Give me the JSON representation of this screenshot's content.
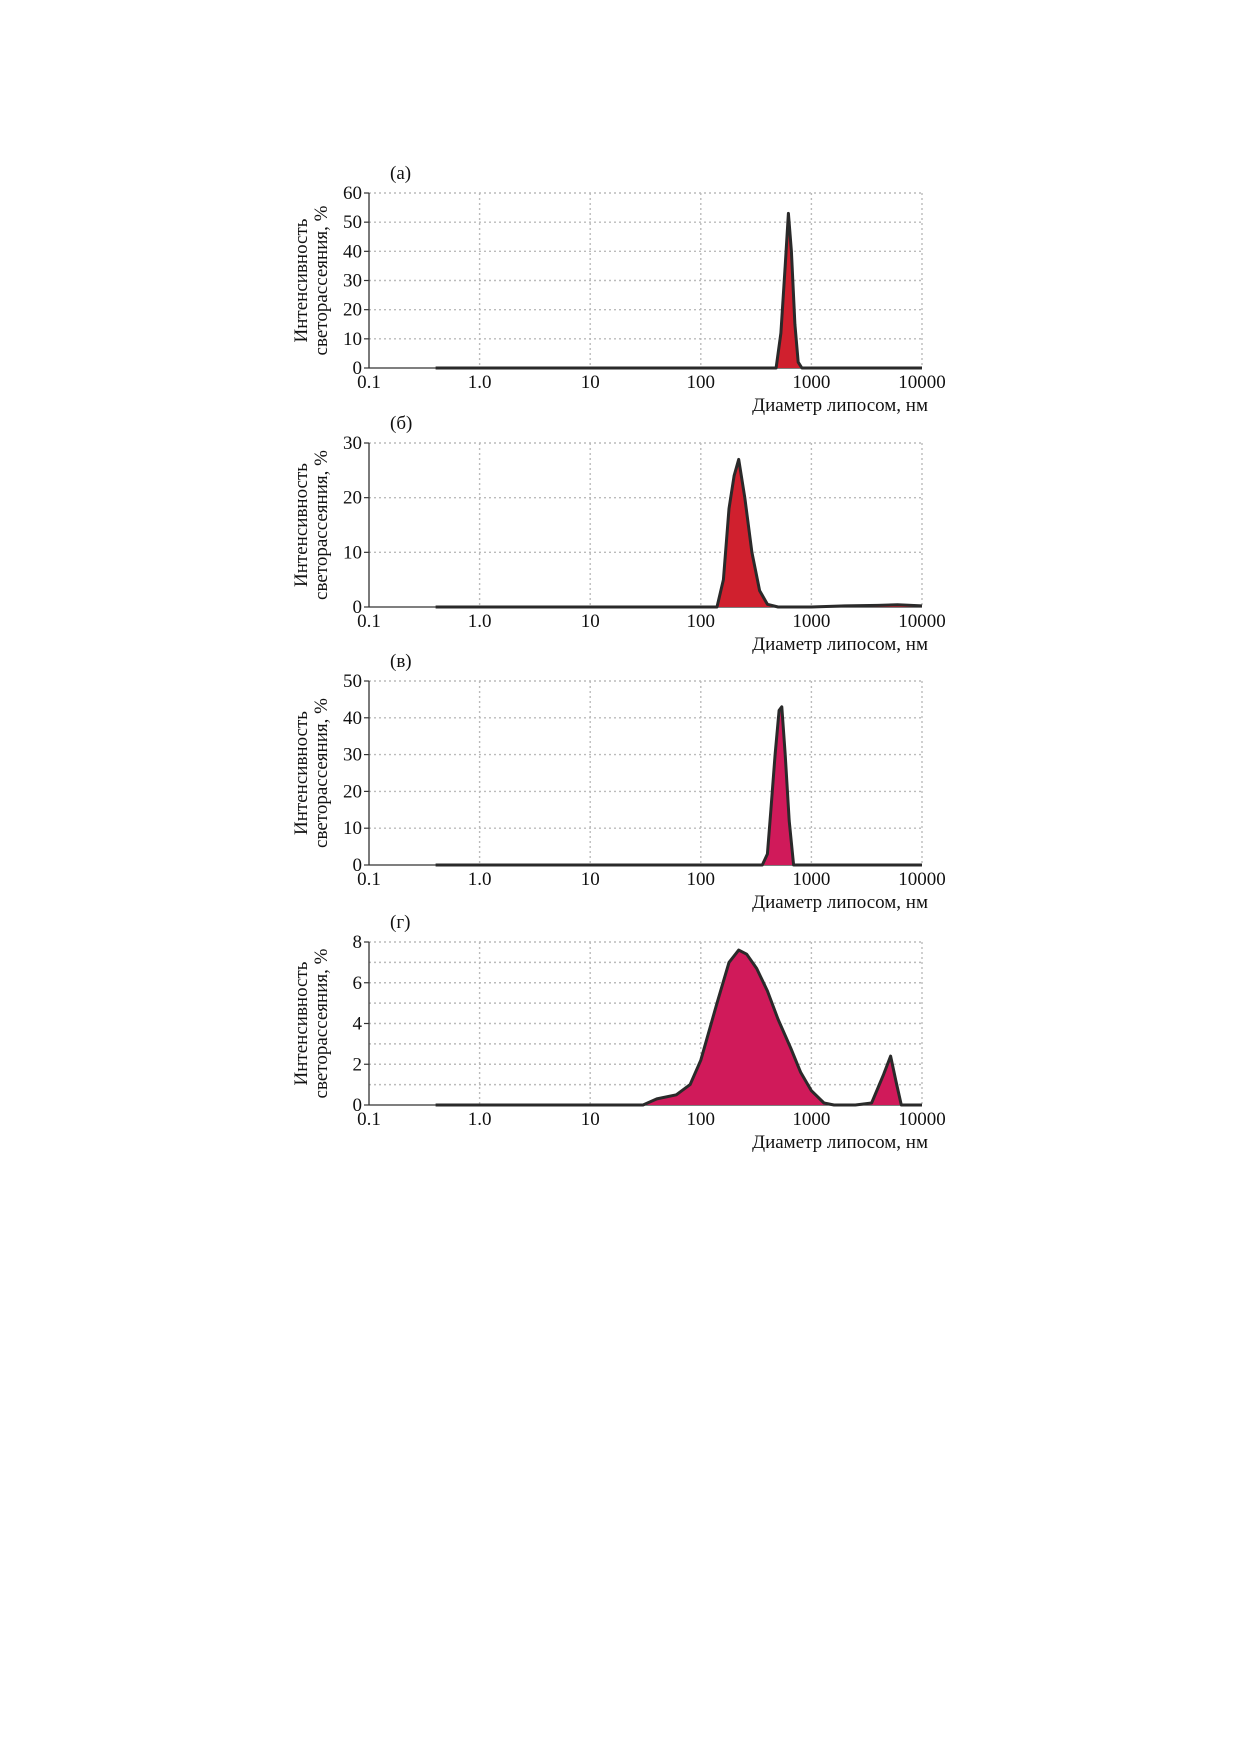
{
  "chart_data": [
    {
      "type": "area",
      "panel_label": "(а)",
      "xlabel": "Диаметр липосом, нм",
      "ylabel": "Интенсивность светорассеяния, %",
      "xscale": "log",
      "xlim": [
        0.1,
        10000
      ],
      "xticks": [
        0.1,
        1,
        10,
        100,
        1000,
        10000
      ],
      "xtick_labels": [
        "0.1",
        "1.0",
        "10",
        "100",
        "1000",
        "10000"
      ],
      "ylim": [
        0,
        60
      ],
      "yticks": [
        0,
        10,
        20,
        30,
        40,
        50,
        60
      ],
      "grid": true,
      "fill_color": "#d0202e",
      "series": [
        {
          "x": [
            0.4,
            480,
            530,
            580,
            620,
            660,
            710,
            760,
            820,
            10000
          ],
          "y": [
            0,
            0,
            12,
            35,
            53,
            40,
            15,
            2,
            0,
            0
          ]
        }
      ]
    },
    {
      "type": "area",
      "panel_label": "(б)",
      "xlabel": "Диаметр липосом, нм",
      "ylabel": "Интенсивность светорассеяния, %",
      "xscale": "log",
      "xlim": [
        0.1,
        10000
      ],
      "xticks": [
        0.1,
        1,
        10,
        100,
        1000,
        10000
      ],
      "xtick_labels": [
        "0.1",
        "1.0",
        "10",
        "100",
        "1000",
        "10000"
      ],
      "ylim": [
        0,
        30
      ],
      "yticks": [
        0,
        10,
        20,
        30
      ],
      "grid": true,
      "fill_color": "#d0202e",
      "series": [
        {
          "x": [
            0.4,
            140,
            160,
            180,
            200,
            220,
            250,
            290,
            340,
            400,
            500,
            1000,
            2000,
            4000,
            6000,
            8000,
            10000
          ],
          "y": [
            0,
            0,
            5,
            18,
            24,
            27,
            20,
            10,
            3,
            0.5,
            0,
            0,
            0.2,
            0.3,
            0.4,
            0.3,
            0.2
          ]
        }
      ]
    },
    {
      "type": "area",
      "panel_label": "(в)",
      "xlabel": "Диаметр липосом, нм",
      "ylabel": "Интенсивность светорассеяния, %",
      "xscale": "log",
      "xlim": [
        0.1,
        10000
      ],
      "xticks": [
        0.1,
        1,
        10,
        100,
        1000,
        10000
      ],
      "xtick_labels": [
        "0.1",
        "1.0",
        "10",
        "100",
        "1000",
        "10000"
      ],
      "ylim": [
        0,
        50
      ],
      "yticks": [
        0,
        10,
        20,
        30,
        40,
        50
      ],
      "grid": true,
      "fill_color": "#d01a5a",
      "series": [
        {
          "x": [
            0.4,
            360,
            400,
            430,
            470,
            510,
            540,
            580,
            630,
            690,
            10000
          ],
          "y": [
            0,
            0,
            3,
            15,
            30,
            42,
            43,
            30,
            12,
            0,
            0
          ]
        }
      ]
    },
    {
      "type": "area",
      "panel_label": "(г)",
      "xlabel": "Диаметр липосом, нм",
      "ylabel": "Интенсивность светорассеяния, %",
      "xscale": "log",
      "xlim": [
        0.1,
        10000
      ],
      "xticks": [
        0.1,
        1,
        10,
        100,
        1000,
        10000
      ],
      "xtick_labels": [
        "0.1",
        "1.0",
        "10",
        "100",
        "1000",
        "10000"
      ],
      "ylim": [
        0,
        8
      ],
      "yticks": [
        0,
        2,
        4,
        6,
        8
      ],
      "yminor": [
        1,
        3,
        5,
        7
      ],
      "grid": true,
      "fill_color": "#d01a5a",
      "series": [
        {
          "x": [
            0.4,
            30,
            40,
            60,
            80,
            100,
            140,
            180,
            220,
            260,
            320,
            400,
            500,
            650,
            800,
            1000,
            1300,
            1600,
            2500,
            3500,
            4500,
            5200,
            5800,
            6500,
            10000
          ],
          "y": [
            0,
            0,
            0.3,
            0.5,
            1.0,
            2.2,
            5.0,
            7.0,
            7.6,
            7.4,
            6.7,
            5.6,
            4.2,
            2.8,
            1.6,
            0.7,
            0.1,
            0,
            0,
            0.1,
            1.5,
            2.4,
            1.2,
            0,
            0
          ]
        }
      ]
    }
  ]
}
